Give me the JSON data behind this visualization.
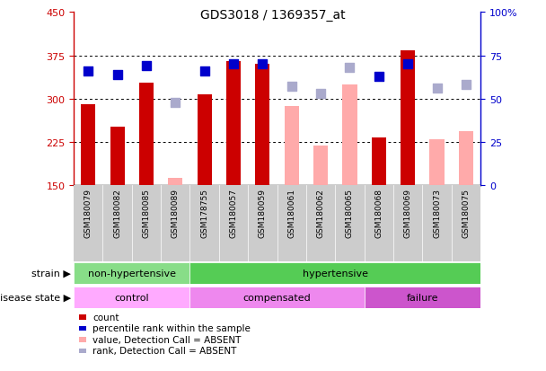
{
  "title": "GDS3018 / 1369357_at",
  "samples": [
    "GSM180079",
    "GSM180082",
    "GSM180085",
    "GSM180089",
    "GSM178755",
    "GSM180057",
    "GSM180059",
    "GSM180061",
    "GSM180062",
    "GSM180065",
    "GSM180068",
    "GSM180069",
    "GSM180073",
    "GSM180075"
  ],
  "bar_values": [
    290,
    252,
    327,
    null,
    308,
    365,
    360,
    null,
    null,
    null,
    232,
    383,
    null,
    null
  ],
  "bar_absent_values": [
    null,
    null,
    null,
    163,
    null,
    null,
    null,
    287,
    218,
    325,
    null,
    null,
    230,
    243
  ],
  "percentile_values": [
    66,
    64,
    69,
    null,
    66,
    70,
    70,
    null,
    null,
    null,
    63,
    70,
    null,
    null
  ],
  "percentile_absent_values": [
    null,
    null,
    null,
    48,
    null,
    null,
    null,
    57,
    53,
    68,
    null,
    null,
    56,
    58
  ],
  "ylim_left": [
    150,
    450
  ],
  "ylim_right": [
    0,
    100
  ],
  "yticks_left": [
    150,
    225,
    300,
    375,
    450
  ],
  "yticks_right": [
    0,
    25,
    50,
    75,
    100
  ],
  "bar_color": "#cc0000",
  "bar_absent_color": "#ffaaaa",
  "percentile_color": "#0000cc",
  "percentile_absent_color": "#aaaacc",
  "tick_area_bg": "#cccccc",
  "strain_groups": [
    {
      "label": "non-hypertensive",
      "start": 0,
      "end": 4,
      "color": "#88dd88"
    },
    {
      "label": "hypertensive",
      "start": 4,
      "end": 14,
      "color": "#55cc55"
    }
  ],
  "disease_groups": [
    {
      "label": "control",
      "start": 0,
      "end": 4,
      "color": "#ffaaff"
    },
    {
      "label": "compensated",
      "start": 4,
      "end": 10,
      "color": "#ee88ee"
    },
    {
      "label": "failure",
      "start": 10,
      "end": 14,
      "color": "#cc55cc"
    }
  ],
  "legend_items": [
    {
      "label": "count",
      "color": "#cc0000"
    },
    {
      "label": "percentile rank within the sample",
      "color": "#0000cc"
    },
    {
      "label": "value, Detection Call = ABSENT",
      "color": "#ffaaaa"
    },
    {
      "label": "rank, Detection Call = ABSENT",
      "color": "#aaaacc"
    }
  ],
  "grid_dotted_at": [
    225,
    300,
    375
  ]
}
